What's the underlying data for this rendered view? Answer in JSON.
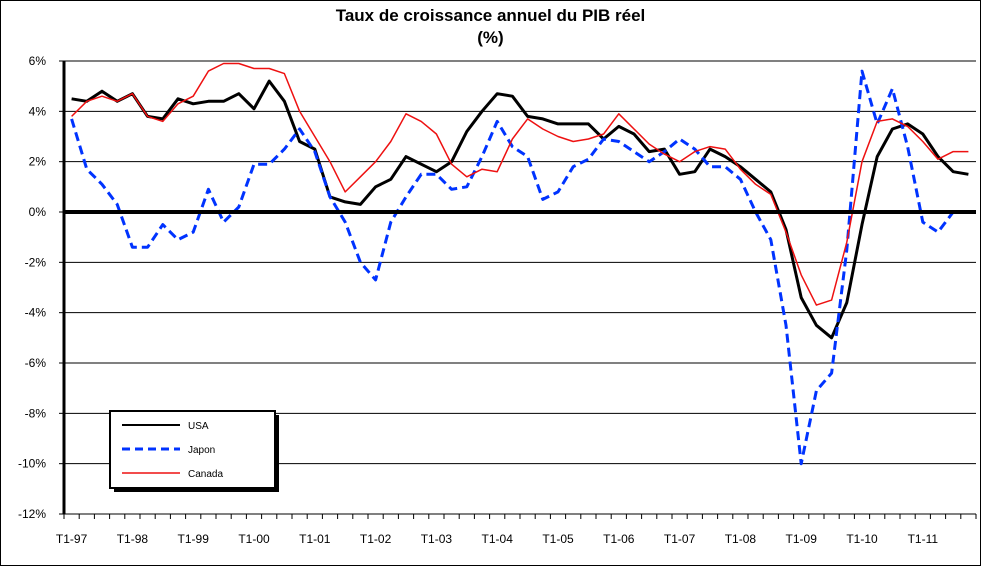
{
  "chart_data": {
    "type": "line",
    "title": "Taux de croissance annuel du PIB réel",
    "subtitle": "(%)",
    "xlabel": "",
    "ylabel": "",
    "ylim": [
      -12,
      6
    ],
    "yticks": [
      6,
      4,
      2,
      0,
      -2,
      -4,
      -6,
      -8,
      -10,
      -12
    ],
    "ytick_labels": [
      "6%",
      "4%",
      "2%",
      "0%",
      "-2%",
      "-4%",
      "-6%",
      "-8%",
      "-10%",
      "-12%"
    ],
    "categories": [
      "T1-97",
      "T2-97",
      "T3-97",
      "T4-97",
      "T1-98",
      "T2-98",
      "T3-98",
      "T4-98",
      "T1-99",
      "T2-99",
      "T3-99",
      "T4-99",
      "T1-00",
      "T2-00",
      "T3-00",
      "T4-00",
      "T1-01",
      "T2-01",
      "T3-01",
      "T4-01",
      "T1-02",
      "T2-02",
      "T3-02",
      "T4-02",
      "T1-03",
      "T2-03",
      "T3-03",
      "T4-03",
      "T1-04",
      "T2-04",
      "T3-04",
      "T4-04",
      "T1-05",
      "T2-05",
      "T3-05",
      "T4-05",
      "T1-06",
      "T2-06",
      "T3-06",
      "T4-06",
      "T1-07",
      "T2-07",
      "T3-07",
      "T4-07",
      "T1-08",
      "T2-08",
      "T3-08",
      "T4-08",
      "T1-09",
      "T2-09",
      "T3-09",
      "T4-09",
      "T1-10",
      "T2-10",
      "T3-10",
      "T4-10",
      "T1-11",
      "T2-11",
      "T3-11",
      "T4-11"
    ],
    "xtick_labels": [
      "T1-97",
      "T1-98",
      "T1-99",
      "T1-00",
      "T1-01",
      "T1-02",
      "T1-03",
      "T1-04",
      "T1-05",
      "T1-06",
      "T1-07",
      "T1-08",
      "T1-09",
      "T1-10",
      "T1-11"
    ],
    "grid": true,
    "legend_position": "bottom-left",
    "series": [
      {
        "name": "USA",
        "color": "#000000",
        "style": "solid-thick",
        "values": [
          4.5,
          4.4,
          4.8,
          4.4,
          4.7,
          3.8,
          3.7,
          4.5,
          4.3,
          4.4,
          4.4,
          4.7,
          4.1,
          5.2,
          4.4,
          2.8,
          2.5,
          0.6,
          0.4,
          0.3,
          1.0,
          1.3,
          2.2,
          1.9,
          1.6,
          2.0,
          3.2,
          4.0,
          4.7,
          4.6,
          3.8,
          3.7,
          3.5,
          3.5,
          3.5,
          2.9,
          3.4,
          3.1,
          2.4,
          2.5,
          1.5,
          1.6,
          2.5,
          2.2,
          1.8,
          1.3,
          0.8,
          -0.7,
          -3.4,
          -4.5,
          -5.0,
          -3.6,
          -0.5,
          2.2,
          3.3,
          3.5,
          3.1,
          2.2,
          1.6,
          1.5
        ]
      },
      {
        "name": "Japon",
        "color": "#0033ff",
        "style": "dashed",
        "values": [
          3.7,
          1.7,
          1.1,
          0.3,
          -1.4,
          -1.4,
          -0.5,
          -1.1,
          -0.8,
          0.9,
          -0.4,
          0.2,
          1.9,
          1.9,
          2.5,
          3.3,
          2.4,
          0.6,
          -0.4,
          -2.0,
          -2.7,
          -0.4,
          0.6,
          1.5,
          1.5,
          0.9,
          1.0,
          2.2,
          3.6,
          2.6,
          2.2,
          0.5,
          0.8,
          1.8,
          2.1,
          2.9,
          2.8,
          2.4,
          2.0,
          2.4,
          2.9,
          2.5,
          1.8,
          1.8,
          1.3,
          0.0,
          -1.1,
          -4.5,
          -10.0,
          -7.1,
          -6.4,
          -1.5,
          5.6,
          3.5,
          4.9,
          2.6,
          -0.4,
          -0.8,
          0.0,
          0.0
        ]
      },
      {
        "name": "Canada",
        "color": "#ee1111",
        "style": "solid",
        "values": [
          3.8,
          4.4,
          4.6,
          4.4,
          4.7,
          3.8,
          3.6,
          4.3,
          4.6,
          5.6,
          5.9,
          5.9,
          5.7,
          5.7,
          5.5,
          4.0,
          3.0,
          2.0,
          0.8,
          1.4,
          2.0,
          2.8,
          3.9,
          3.6,
          3.1,
          1.9,
          1.4,
          1.7,
          1.6,
          2.9,
          3.7,
          3.3,
          3.0,
          2.8,
          2.9,
          3.1,
          3.9,
          3.3,
          2.7,
          2.3,
          2.0,
          2.4,
          2.6,
          2.5,
          1.7,
          1.1,
          0.7,
          -0.8,
          -2.5,
          -3.7,
          -3.5,
          -1.2,
          2.0,
          3.6,
          3.7,
          3.4,
          2.8,
          2.1,
          2.4,
          2.4
        ]
      }
    ]
  }
}
